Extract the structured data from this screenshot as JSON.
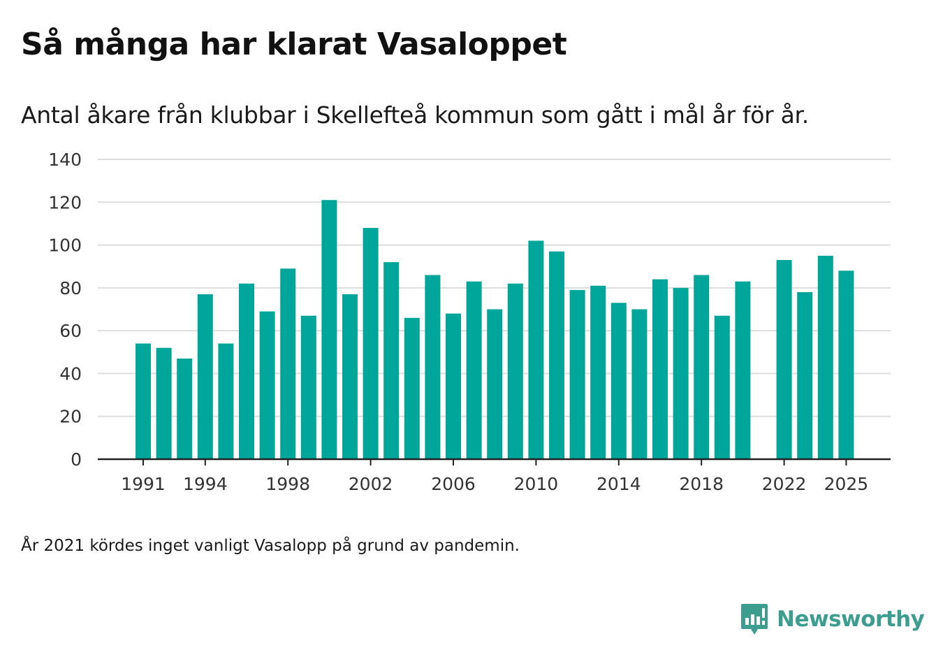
{
  "chart_data": {
    "type": "bar",
    "title": "Så många har klarat Vasaloppet",
    "subtitle": "Antal åkare från klubbar i Skellefteå kommun som gått i mål år för år.",
    "xlabel": "",
    "ylabel": "",
    "ylim": [
      0,
      140
    ],
    "yticks": [
      0,
      20,
      40,
      60,
      80,
      100,
      120,
      140
    ],
    "xticks": [
      1991,
      1994,
      1998,
      2002,
      2006,
      2010,
      2014,
      2018,
      2022,
      2025
    ],
    "grid": true,
    "series": [
      {
        "name": "Antal åkare",
        "color": "#00a699",
        "points": [
          {
            "year": 1991,
            "value": 54
          },
          {
            "year": 1992,
            "value": 52
          },
          {
            "year": 1993,
            "value": 47
          },
          {
            "year": 1994,
            "value": 77
          },
          {
            "year": 1995,
            "value": 54
          },
          {
            "year": 1996,
            "value": 82
          },
          {
            "year": 1997,
            "value": 69
          },
          {
            "year": 1998,
            "value": 89
          },
          {
            "year": 1999,
            "value": 67
          },
          {
            "year": 2000,
            "value": 121
          },
          {
            "year": 2001,
            "value": 77
          },
          {
            "year": 2002,
            "value": 108
          },
          {
            "year": 2003,
            "value": 92
          },
          {
            "year": 2004,
            "value": 66
          },
          {
            "year": 2005,
            "value": 86
          },
          {
            "year": 2006,
            "value": 68
          },
          {
            "year": 2007,
            "value": 83
          },
          {
            "year": 2008,
            "value": 70
          },
          {
            "year": 2009,
            "value": 82
          },
          {
            "year": 2010,
            "value": 102
          },
          {
            "year": 2011,
            "value": 97
          },
          {
            "year": 2012,
            "value": 79
          },
          {
            "year": 2013,
            "value": 81
          },
          {
            "year": 2014,
            "value": 73
          },
          {
            "year": 2015,
            "value": 70
          },
          {
            "year": 2016,
            "value": 84
          },
          {
            "year": 2017,
            "value": 80
          },
          {
            "year": 2018,
            "value": 86
          },
          {
            "year": 2019,
            "value": 67
          },
          {
            "year": 2020,
            "value": 83
          },
          {
            "year": 2022,
            "value": 93
          },
          {
            "year": 2023,
            "value": 78
          },
          {
            "year": 2024,
            "value": 95
          },
          {
            "year": 2025,
            "value": 88
          }
        ]
      }
    ]
  },
  "footnote": "År 2021 kördes inget vanligt Vasalopp på grund av pandemin.",
  "brand": {
    "name": "Newsworthy",
    "icon": "newsworthy-logo-icon",
    "color": "#3d9e8f"
  },
  "colors": {
    "bar": "#00a699",
    "grid": "#dddddd",
    "axis": "#222222",
    "tick_text": "#333333"
  }
}
